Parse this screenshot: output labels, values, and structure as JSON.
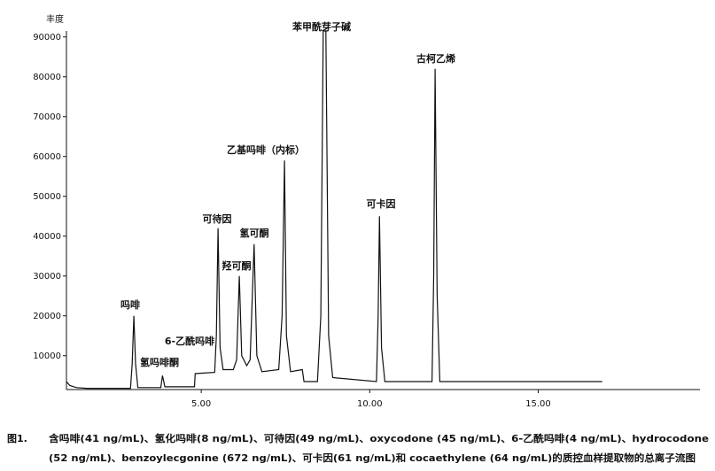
{
  "chart_data": {
    "type": "line",
    "y_label": "丰度",
    "x": [
      1.0,
      1.1,
      1.3,
      1.6,
      2.0,
      2.9,
      2.95,
      3.0,
      3.05,
      3.12,
      3.8,
      3.85,
      3.92,
      4.8,
      4.82,
      5.4,
      5.45,
      5.5,
      5.56,
      5.65,
      5.95,
      6.05,
      6.13,
      6.2,
      6.35,
      6.45,
      6.57,
      6.65,
      6.8,
      7.3,
      7.4,
      7.47,
      7.53,
      7.65,
      8.0,
      8.05,
      8.45,
      8.55,
      8.62,
      8.7,
      8.78,
      8.9,
      10.2,
      10.25,
      10.29,
      10.35,
      10.45,
      11.85,
      11.9,
      11.94,
      12.0,
      12.08,
      16.9
    ],
    "values": [
      3500,
      2500,
      2000,
      1800,
      1800,
      1800,
      8000,
      20000,
      8000,
      2000,
      2000,
      5000,
      2200,
      2200,
      5500,
      5800,
      15000,
      42000,
      12000,
      6500,
      6500,
      9000,
      30000,
      10000,
      7500,
      9000,
      38000,
      10000,
      6000,
      6500,
      20000,
      59000,
      15000,
      6000,
      6500,
      3500,
      3500,
      20000,
      91500,
      91500,
      15000,
      4500,
      3500,
      20000,
      45000,
      12000,
      3500,
      3500,
      30000,
      82000,
      25000,
      3500,
      3500
    ],
    "color": "#111111",
    "xlim": [
      1.0,
      19.8
    ],
    "ylim": [
      1500,
      91500
    ],
    "xticks": [
      {
        "value": 5,
        "label": "5.00"
      },
      {
        "value": 10,
        "label": "10.00"
      },
      {
        "value": 15,
        "label": "15.00"
      }
    ],
    "yticks": [
      10000,
      20000,
      30000,
      40000,
      50000,
      60000,
      70000,
      80000,
      90000
    ],
    "annotations": [
      "吗啡",
      "氢吗啡酮",
      "6-乙酰吗啡",
      "可待因",
      "羟可酮",
      "氢可酮",
      "乙基吗啡（内标）",
      "苯甲酰芽子碱",
      "可卡因",
      "古柯乙烯"
    ],
    "caption": {
      "label": "图1.",
      "lines": [
        "含吗啡(41 ng/mL)、氢化吗啡(8 ng/mL)、可待因(49 ng/mL)、oxycodone (45 ng/mL)、6-乙酰吗啡(4 ng/mL)、hydrocodone",
        "(52 ng/mL)、benzoylecgonine (672 ng/mL)、可卡因(61 ng/mL)和 cocaethylene (64 ng/mL)的质控血样提取物的总离子流图"
      ]
    }
  }
}
